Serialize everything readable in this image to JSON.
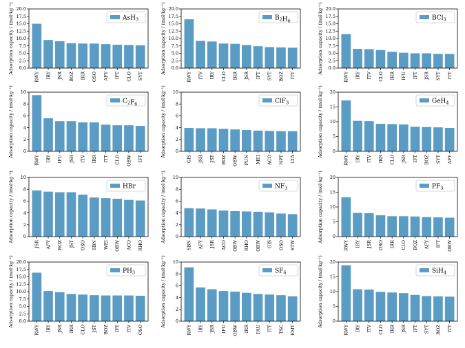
{
  "colors": {
    "bar": "#5b9cc4",
    "axis": "#000000",
    "legend_border": "#cccccc"
  },
  "chart_data": [
    {
      "type": "bar",
      "legend": "AsH",
      "legend_sub": "3",
      "ylabel": "Adsorption capacity / (mol·kg⁻¹)",
      "ylim": [
        0,
        20
      ],
      "yticks": [
        "0.0",
        "2.5",
        "5.0",
        "7.5",
        "10.0",
        "12.5",
        "15.0",
        "17.5",
        "20.0"
      ],
      "categories": [
        "RWY",
        "IRY",
        "JSR",
        "BOZ",
        "IRR",
        "OSO",
        "AFY",
        "IFT",
        "CLO",
        "SYT"
      ],
      "values": [
        15.0,
        9.5,
        9.1,
        8.4,
        8.3,
        8.3,
        8.1,
        7.9,
        7.8,
        7.7
      ]
    },
    {
      "type": "bar",
      "legend": "B",
      "legend_sub": "2",
      "legend_mid": "H",
      "legend_sub2": "6",
      "ylabel": "Adsorption capacity / (mol·kg⁻¹)",
      "ylim": [
        0,
        20
      ],
      "yticks": [
        "0.0",
        "2.5",
        "5.0",
        "7.5",
        "10.0",
        "12.5",
        "15.0",
        "17.5",
        "20.0"
      ],
      "categories": [
        "RWY",
        "ITV",
        "IRY",
        "CLO",
        "IRR",
        "JSR",
        "IFT",
        "SYT",
        "BOZ",
        "ITT"
      ],
      "values": [
        16.5,
        9.2,
        9.0,
        8.3,
        8.2,
        7.8,
        7.4,
        7.1,
        7.0,
        6.9
      ]
    },
    {
      "type": "bar",
      "legend": "BCl",
      "legend_sub": "3",
      "ylabel": "Adsorption capacity / (mol·kg⁻¹)",
      "ylim": [
        0,
        20
      ],
      "yticks": [
        "0.0",
        "2.5",
        "5.0",
        "7.5",
        "10.0",
        "12.5",
        "15.0",
        "17.5",
        "20.0"
      ],
      "categories": [
        "RWY",
        "IRY",
        "ITV",
        "CLO",
        "IRR",
        "IFU",
        "IFT",
        "JSR",
        "SYT",
        "ITT"
      ],
      "values": [
        11.5,
        6.5,
        6.4,
        6.1,
        5.5,
        5.2,
        5.0,
        5.0,
        4.8,
        4.8
      ]
    },
    {
      "type": "bar",
      "legend": "C",
      "legend_sub": "2",
      "legend_mid": "F",
      "legend_sub2": "6",
      "ylabel": "Adsorption capacity / (mol·kg⁻¹)",
      "ylim": [
        0,
        10
      ],
      "yticks": [
        "0",
        "2",
        "4",
        "6",
        "8",
        "10"
      ],
      "categories": [
        "RWY",
        "IRY",
        "IFU",
        "JSR",
        "ITV",
        "IRR",
        "ITT",
        "CLO",
        "OBW",
        "IFT"
      ],
      "values": [
        9.5,
        5.6,
        5.1,
        5.1,
        4.9,
        4.9,
        4.5,
        4.4,
        4.4,
        4.3
      ]
    },
    {
      "type": "bar",
      "legend": "ClF",
      "legend_sub": "3",
      "ylabel": "Adsorption capacity / (mol·kg⁻¹)",
      "ylim": [
        0,
        10
      ],
      "yticks": [
        "0",
        "2",
        "4",
        "6",
        "8",
        "10"
      ],
      "categories": [
        "GIS",
        "JSR",
        "JST",
        "BOZ",
        "OBW",
        "PUN",
        "MEI",
        "ACO",
        "NPT",
        "LTA"
      ],
      "values": [
        3.95,
        3.9,
        3.9,
        3.8,
        3.7,
        3.6,
        3.5,
        3.45,
        3.4,
        3.4
      ]
    },
    {
      "type": "bar",
      "legend": "GeH",
      "legend_sub": "4",
      "ylabel": "Adsorption capacity / (mol·kg⁻¹)",
      "ylim": [
        0,
        20
      ],
      "yticks": [
        "0",
        "5",
        "10",
        "15",
        "20"
      ],
      "categories": [
        "RWY",
        "IRY",
        "ITV",
        "IRR",
        "CLO",
        "JSR",
        "IFT",
        "BOZ",
        "SYT",
        "AFY"
      ],
      "values": [
        17.2,
        10.3,
        10.2,
        9.3,
        9.2,
        9.1,
        8.3,
        8.2,
        8.1,
        7.9
      ]
    },
    {
      "type": "bar",
      "legend": "HBr",
      "legend_sub": "",
      "ylabel": "Adsorption capacity / (mol·kg⁻¹)",
      "ylim": [
        0,
        10
      ],
      "yticks": [
        "0",
        "2",
        "4",
        "6",
        "8",
        "10"
      ],
      "categories": [
        "JSR",
        "AFY",
        "BOZ",
        "JST",
        "OSO",
        "SBN",
        "WEI",
        "OBW",
        "ACO",
        "RHO"
      ],
      "values": [
        7.8,
        7.6,
        7.5,
        7.5,
        7.1,
        6.6,
        6.5,
        6.4,
        6.2,
        6.1
      ]
    },
    {
      "type": "bar",
      "legend": "NF",
      "legend_sub": "3",
      "ylabel": "Adsorption capacity / (mol·kg⁻¹)",
      "ylim": [
        0,
        10
      ],
      "yticks": [
        "0",
        "2",
        "4",
        "6",
        "8",
        "10"
      ],
      "categories": [
        "SBN",
        "AFY",
        "JSR",
        "ACO",
        "OBW",
        "RHO",
        "OBW",
        "GIS",
        "OSO",
        "STW"
      ],
      "values": [
        4.8,
        4.75,
        4.6,
        4.4,
        4.3,
        4.25,
        4.2,
        4.1,
        3.9,
        3.8
      ]
    },
    {
      "type": "bar",
      "legend": "PF",
      "legend_sub": "3",
      "ylabel": "Adsorption capacity / (mol·kg⁻¹)",
      "ylim": [
        0,
        20
      ],
      "yticks": [
        "0",
        "5",
        "10",
        "15",
        "20"
      ],
      "categories": [
        "RWY",
        "IRY",
        "JSR",
        "OSO",
        "IRR",
        "CLO",
        "BOZ",
        "AFY",
        "IFT",
        "OBW"
      ],
      "values": [
        13.3,
        8.0,
        7.9,
        7.2,
        6.9,
        6.9,
        6.8,
        6.6,
        6.5,
        6.4
      ]
    },
    {
      "type": "bar",
      "legend": "PH",
      "legend_sub": "3",
      "ylabel": "Adsorption capacity / (mol·kg⁻¹)",
      "ylim": [
        0,
        20
      ],
      "yticks": [
        "0.0",
        "2.5",
        "5.0",
        "7.5",
        "10.0",
        "12.5",
        "15.0",
        "17.5",
        "20.0"
      ],
      "categories": [
        "RWY",
        "IRY",
        "JSR",
        "IRR",
        "CLO",
        "JST",
        "BOZ",
        "IFT",
        "ITV",
        "OSO"
      ],
      "values": [
        16.4,
        10.2,
        9.8,
        9.2,
        9.0,
        8.8,
        8.7,
        8.7,
        8.7,
        8.6
      ]
    },
    {
      "type": "bar",
      "legend": "SF",
      "legend_sub": "6",
      "ylabel": "Adsorption capacity / (mol·kg⁻¹)",
      "ylim": [
        0,
        10
      ],
      "yticks": [
        "0",
        "2",
        "4",
        "6",
        "8",
        "10"
      ],
      "categories": [
        "RWY",
        "IRY",
        "JSR",
        "IFU",
        "OBW",
        "IRR",
        "FAU",
        "ITT",
        "TSC",
        "EMT"
      ],
      "values": [
        9.1,
        5.7,
        5.4,
        5.1,
        5.0,
        4.8,
        4.6,
        4.5,
        4.4,
        4.2
      ]
    },
    {
      "type": "bar",
      "legend": "SiH",
      "legend_sub": "4",
      "ylabel": "Adsorption capacity / (mol·kg⁻¹)",
      "ylim": [
        0,
        20
      ],
      "yticks": [
        "0",
        "5",
        "10",
        "15",
        "20"
      ],
      "categories": [
        "RWY",
        "IRY",
        "ITV",
        "CLO",
        "IRR",
        "JSR",
        "IFT",
        "SYT",
        "BOZ",
        "ITT"
      ],
      "values": [
        18.9,
        10.8,
        10.7,
        9.9,
        9.7,
        9.5,
        8.9,
        8.5,
        8.4,
        8.3
      ]
    }
  ]
}
